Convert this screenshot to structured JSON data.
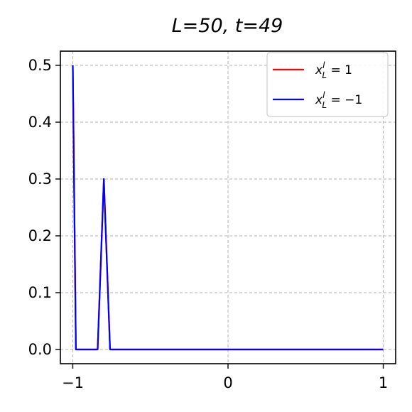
{
  "chart_data": {
    "type": "line",
    "title": "L=50, t=49",
    "xlabel": "",
    "ylabel": "",
    "xlim": [
      -1.08,
      1.08
    ],
    "ylim": [
      -0.025,
      0.525
    ],
    "xticks": [
      -1,
      0,
      1
    ],
    "xtick_labels": [
      "−1",
      "0",
      "1"
    ],
    "yticks": [
      0.0,
      0.1,
      0.2,
      0.3,
      0.4,
      0.5
    ],
    "ytick_labels": [
      "0.0",
      "0.1",
      "0.2",
      "0.3",
      "0.4",
      "0.5"
    ],
    "grid": true,
    "legend_position": "top-right",
    "series": [
      {
        "name": "x_L^l = 1",
        "color": "#ff0000",
        "x": [
          -1.0,
          -0.98,
          -0.84,
          -0.8,
          -0.76,
          1.0
        ],
        "y": [
          0.5,
          0.0,
          0.0,
          0.3,
          0.0,
          0.0
        ]
      },
      {
        "name": "x_L^l = −1",
        "color": "#0000ff",
        "x": [
          -1.0,
          -0.98,
          -0.84,
          -0.8,
          -0.76,
          1.0
        ],
        "y": [
          0.5,
          0.0,
          0.0,
          0.3,
          0.0,
          0.0
        ]
      }
    ],
    "legend": [
      {
        "base": "x",
        "sup": "l",
        "sub": "L",
        "rest": " = 1",
        "color": "#ff0000"
      },
      {
        "base": "x",
        "sup": "l",
        "sub": "L",
        "rest": " = −1",
        "color": "#0000ff"
      }
    ]
  }
}
